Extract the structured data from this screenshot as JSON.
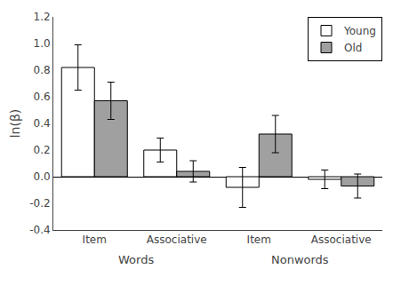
{
  "chart_data": {
    "type": "bar",
    "categories": [
      "Item",
      "Associative",
      "Item",
      "Associative"
    ],
    "group_labels": [
      "Words",
      "Nonwords"
    ],
    "series": [
      {
        "name": "Young",
        "color": "#ffffff",
        "values": [
          0.82,
          0.2,
          -0.08,
          -0.02
        ],
        "errors": [
          0.17,
          0.09,
          0.15,
          0.07
        ]
      },
      {
        "name": "Old",
        "color": "#a0a0a0",
        "values": [
          0.57,
          0.04,
          0.32,
          -0.07
        ],
        "errors": [
          0.14,
          0.08,
          0.14,
          0.09
        ]
      }
    ],
    "edge_color": "#000000",
    "ylabel": "ln(β)",
    "ylim": [
      -0.4,
      1.2
    ],
    "yticks": [
      -0.4,
      -0.2,
      {
        "value": 0,
        "label": "0.0"
      },
      0.2,
      0.4,
      0.6,
      0.8,
      {
        "value": 1,
        "label": "1.0"
      },
      1.2
    ],
    "grid": false,
    "legend": "upper right"
  }
}
